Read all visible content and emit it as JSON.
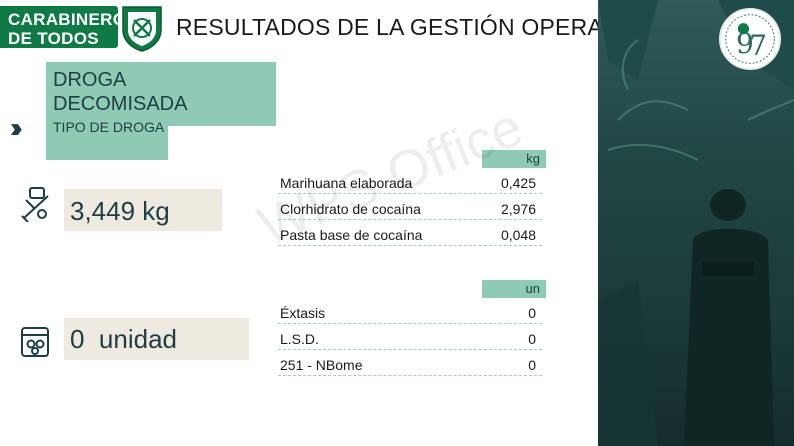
{
  "header": {
    "brand_line1": "CARABINEROS",
    "brand_line2": "DE TODOS",
    "title": "RESULTADOS DE LA GESTIÓN OPERATIVA"
  },
  "section": {
    "title": "DROGA DECOMISADA",
    "subtitle": "TIPO DE DROGA"
  },
  "drugs_by_weight": {
    "total": "3,449 kg",
    "unit": "kg",
    "rows": [
      {
        "name": "Marihuana elaborada",
        "value": "0,425"
      },
      {
        "name": "Clorhidrato de cocaína",
        "value": "2,976"
      },
      {
        "name": "Pasta base de cocaína",
        "value": "0,048"
      }
    ]
  },
  "drugs_by_unit": {
    "total": "0  unidad",
    "unit": "un",
    "rows": [
      {
        "name": "Éxtasis",
        "value": "0"
      },
      {
        "name": "L.S.D.",
        "value": "0"
      },
      {
        "name": "251 - NBome",
        "value": "0"
      }
    ]
  },
  "watermark": "WPS Office",
  "icons": [
    "shield-icon",
    "double-chevron-icon",
    "drug-syringe-icon",
    "pills-box-icon",
    "anniversary-badge-icon"
  ],
  "colors": {
    "brand_green": "#0f7a45",
    "accent_mint": "#8fcab4",
    "total_bg": "#efeae0",
    "text_dark": "#1f3d44",
    "photo_dark": "#1b3a39"
  }
}
